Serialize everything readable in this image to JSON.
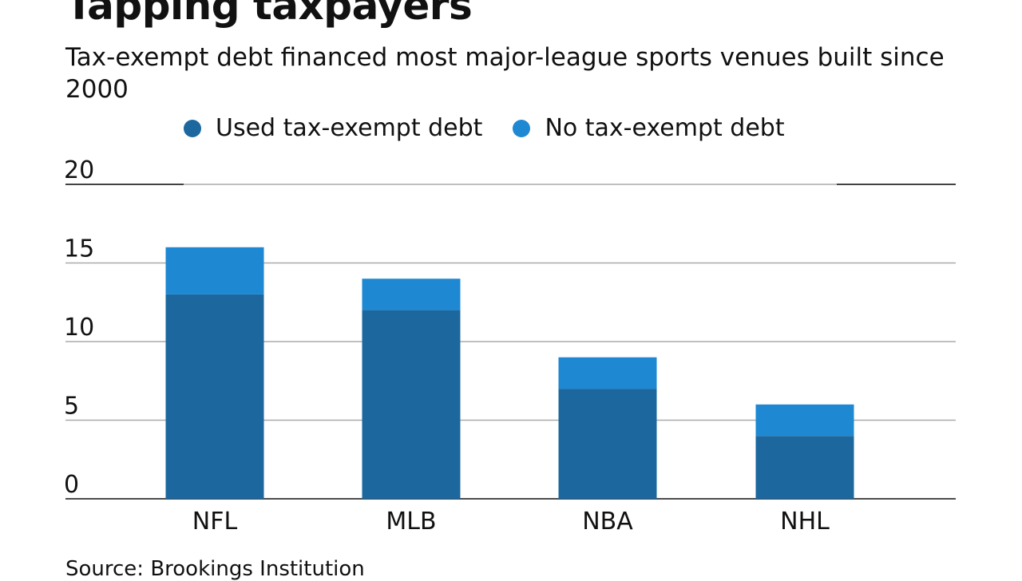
{
  "chart_data": {
    "type": "bar",
    "stacked": true,
    "title": "Tapping taxpayers",
    "subtitle": "Tax-exempt debt financed most major-league sports venues built since 2000",
    "categories": [
      "NFL",
      "MLB",
      "NBA",
      "NHL"
    ],
    "series": [
      {
        "name": "Used tax-exempt debt",
        "values": [
          13,
          12,
          7,
          4
        ],
        "color": "#1c689e"
      },
      {
        "name": "No tax-exempt debt",
        "values": [
          3,
          2,
          2,
          2
        ],
        "color": "#1e88d2"
      }
    ],
    "yticks": [
      0,
      5,
      10,
      15,
      20
    ],
    "ylim": [
      0,
      20
    ],
    "xlabel": "",
    "ylabel": "",
    "grid": true,
    "legend": "top-center",
    "source": "Source: Brookings Institution"
  }
}
